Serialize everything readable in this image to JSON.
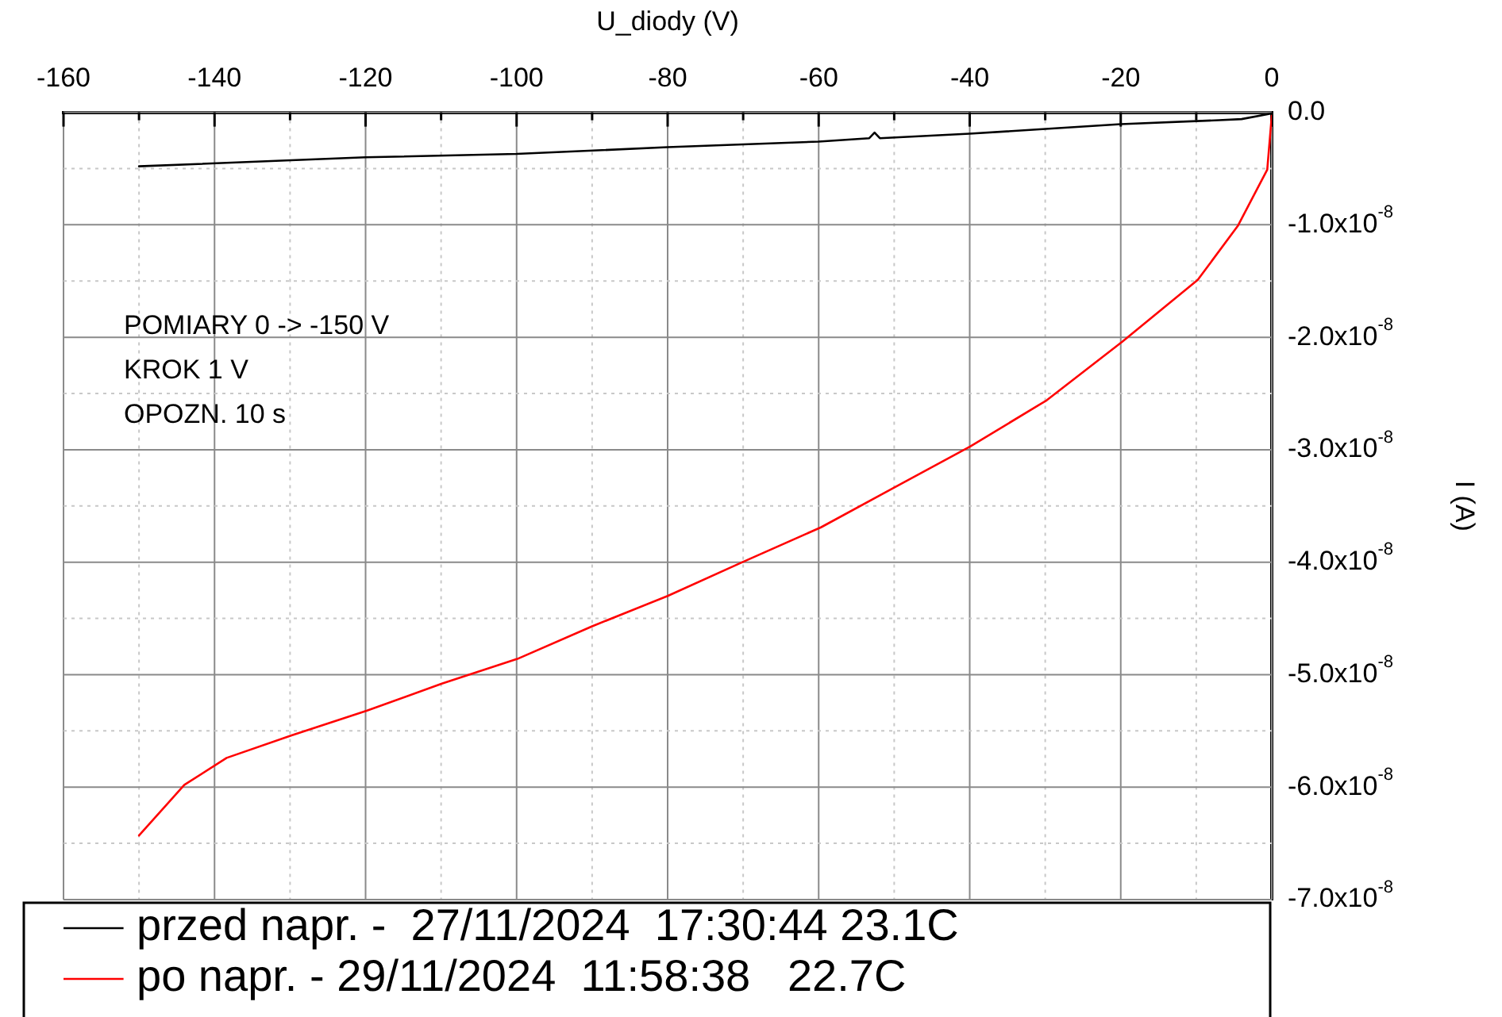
{
  "chart_data": {
    "type": "line",
    "xlabel": "U_diody (V)",
    "ylabel": "I (A)",
    "xlim": [
      -160,
      0
    ],
    "ylim": [
      -7e-08,
      0
    ],
    "xticks": [
      -160,
      {
        "value": -150,
        "label": null
      },
      -140,
      {
        "value": -130,
        "label": null
      },
      -120,
      {
        "value": -110,
        "label": null
      },
      -100,
      {
        "value": -90,
        "label": null
      },
      -80,
      {
        "value": -70,
        "label": null
      },
      -60,
      {
        "value": -50,
        "label": null
      },
      -40,
      {
        "value": -30,
        "label": null
      },
      -20,
      {
        "value": -10,
        "label": null
      },
      0
    ],
    "yticks": [
      {
        "value": 0,
        "label": "0.0"
      },
      {
        "value": -5e-09,
        "label": null
      },
      {
        "value": -1e-08,
        "label": "-1.0x10$^{-8}$"
      },
      {
        "value": -1.5e-08,
        "label": null
      },
      {
        "value": -2e-08,
        "label": "-2.0x10$^{-8}$"
      },
      {
        "value": -2.5e-08,
        "label": null
      },
      {
        "value": -3e-08,
        "label": "-3.0x10$^{-8}$"
      },
      {
        "value": -3.5e-08,
        "label": null
      },
      {
        "value": -4e-08,
        "label": "-4.0x10$^{-8}$"
      },
      {
        "value": -4.5e-08,
        "label": null
      },
      {
        "value": -5e-08,
        "label": "-5.0x10$^{-8}$"
      },
      {
        "value": -5.5e-08,
        "label": null
      },
      {
        "value": -6e-08,
        "label": "-6.0x10$^{-8}$"
      },
      {
        "value": -6.5e-08,
        "label": null
      },
      {
        "value": -7e-08,
        "label": "-7.0x10$^{-8}$"
      }
    ],
    "grid": true,
    "legend": "bottom",
    "marker": "none",
    "line_style": "solid",
    "annotations": [
      "POMIARY 0 -> -150 V",
      "KROK 1 V",
      "OPOZN. 10 s"
    ],
    "series": [
      {
        "name": "przed napr. -  27/11/2024  17:30:44 23.1C",
        "color": "#000000",
        "x": [
          -150,
          -120,
          -100,
          -80,
          -60,
          -53.3,
          -52.6,
          -51.9,
          -40,
          -20,
          -7,
          -4,
          0
        ],
        "values": [
          -4.8e-09,
          -4e-09,
          -3.7e-09,
          -3.1e-09,
          -2.6e-09,
          -2.3e-09,
          -1.8e-09,
          -2.3e-09,
          -1.9e-09,
          -1.05e-09,
          -7e-10,
          -6e-10,
          -1e-10
        ]
      },
      {
        "name": "po napr. - 29/11/2024  11:58:38   22.7C",
        "color": "#ff0000",
        "x": [
          -150,
          -144,
          -138.4,
          -129.8,
          -119.8,
          -109.9,
          -99.9,
          -90,
          -80,
          -70.1,
          -59.7,
          -50.1,
          -39.9,
          -29.8,
          -19.8,
          -9.8,
          -4.5,
          -0.6,
          0
        ],
        "values": [
          -6.43e-08,
          -5.98e-08,
          -5.74e-08,
          -5.54e-08,
          -5.32e-08,
          -5.08e-08,
          -4.86e-08,
          -4.57e-08,
          -4.3e-08,
          -4e-08,
          -3.69e-08,
          -3.34e-08,
          -2.97e-08,
          -2.56e-08,
          -2.04e-08,
          -1.49e-08,
          -1.01e-08,
          -5.1e-09,
          -3e-10
        ]
      }
    ]
  }
}
